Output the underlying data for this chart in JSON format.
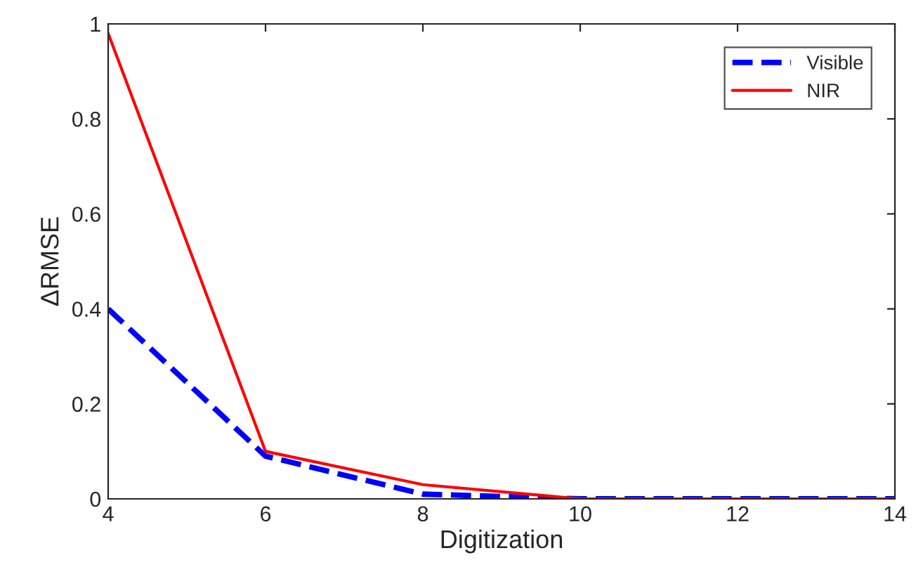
{
  "chart_data": {
    "type": "line",
    "xlabel": "Digitization",
    "ylabel": "ΔRMSE",
    "x": [
      4,
      6,
      8,
      10,
      12,
      14
    ],
    "series": [
      {
        "name": "Visible",
        "color": "#0000ff",
        "line_style": "dashed",
        "values": [
          0.4,
          0.09,
          0.01,
          0,
          0,
          0
        ]
      },
      {
        "name": "NIR",
        "color": "#ff0000",
        "line_style": "solid",
        "values": [
          0.98,
          0.1,
          0.03,
          0,
          0,
          0
        ]
      }
    ],
    "xlim": [
      4,
      14
    ],
    "xticks": [
      4,
      6,
      8,
      10,
      12,
      14
    ],
    "ylim": [
      0,
      1
    ],
    "yticks": [
      0,
      0.2,
      0.4,
      0.6,
      0.8,
      1
    ],
    "grid": false,
    "legend": "top right",
    "marker": "none"
  }
}
